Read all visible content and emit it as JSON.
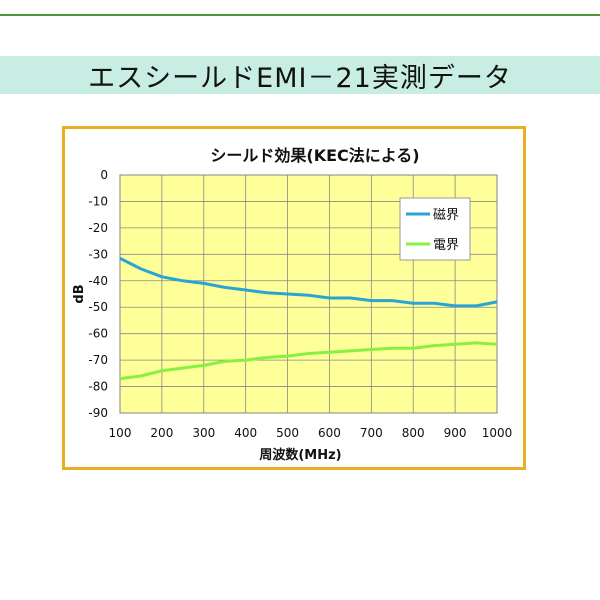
{
  "page": {
    "banner_title": "エスシールドEMI－21実測データ"
  },
  "colors": {
    "banner_bg": "#c8eee4",
    "frame_border": "#e8b020",
    "plot_bg": "#ffff99",
    "magnetic": "#2aa4d4",
    "electric": "#88f040"
  },
  "chart_data": {
    "type": "line",
    "title": "シールド効果(KEC法による)",
    "xlabel": "周波数(MHz)",
    "ylabel": "dB",
    "xlim": [
      100,
      1000
    ],
    "ylim": [
      -90,
      0
    ],
    "xticks": [
      100,
      200,
      300,
      400,
      500,
      600,
      700,
      800,
      900,
      1000
    ],
    "yticks": [
      0,
      -10,
      -20,
      -30,
      -40,
      -50,
      -60,
      -70,
      -80,
      -90
    ],
    "grid": true,
    "legend_position": "top-right",
    "series": [
      {
        "name": "磁界",
        "color": "#2aa4d4",
        "x": [
          100,
          150,
          200,
          250,
          300,
          350,
          400,
          450,
          500,
          550,
          600,
          650,
          700,
          750,
          800,
          850,
          900,
          950,
          1000
        ],
        "y": [
          -31.5,
          -35.5,
          -38.5,
          -40,
          -41,
          -42.5,
          -43.5,
          -44.5,
          -45,
          -45.5,
          -46.5,
          -46.5,
          -47.5,
          -47.5,
          -48.5,
          -48.5,
          -49.5,
          -49.5,
          -48
        ]
      },
      {
        "name": "電界",
        "color": "#88f040",
        "x": [
          100,
          150,
          200,
          250,
          300,
          350,
          400,
          450,
          500,
          550,
          600,
          650,
          700,
          750,
          800,
          850,
          900,
          950,
          1000
        ],
        "y": [
          -77,
          -76,
          -74,
          -73,
          -72,
          -70.5,
          -70,
          -69,
          -68.5,
          -67.5,
          -67,
          -66.5,
          -66,
          -65.5,
          -65.5,
          -64.5,
          -64,
          -63.5,
          -64
        ]
      }
    ]
  }
}
